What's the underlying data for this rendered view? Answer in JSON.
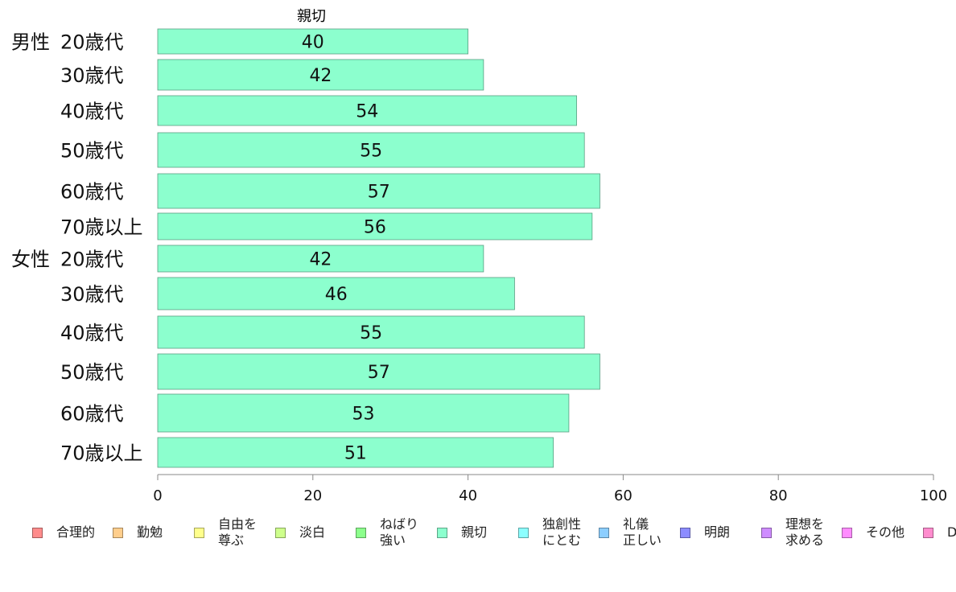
{
  "chart_data": {
    "type": "bar",
    "orientation": "horizontal",
    "series_title": "親切",
    "rows": [
      {
        "group": "男性",
        "label": "20歳代",
        "value": 40
      },
      {
        "group": "",
        "label": "30歳代",
        "value": 42
      },
      {
        "group": "",
        "label": "40歳代",
        "value": 54
      },
      {
        "group": "",
        "label": "50歳代",
        "value": 55
      },
      {
        "group": "",
        "label": "60歳代",
        "value": 57
      },
      {
        "group": "",
        "label": "70歳以上",
        "value": 56
      },
      {
        "group": "女性",
        "label": "20歳代",
        "value": 42
      },
      {
        "group": "",
        "label": "30歳代",
        "value": 46
      },
      {
        "group": "",
        "label": "40歳代",
        "value": 55
      },
      {
        "group": "",
        "label": "50歳代",
        "value": 57
      },
      {
        "group": "",
        "label": "60歳代",
        "value": 53
      },
      {
        "group": "",
        "label": "70歳以上",
        "value": 51
      }
    ],
    "xlim": [
      0,
      100
    ],
    "xticks": [
      "0",
      "20",
      "40",
      "60",
      "80",
      "100"
    ],
    "bar_color": "#8cffce",
    "grid": false,
    "legend_position": "bottom",
    "legend": [
      {
        "label": "合理的",
        "color": "#ff8c8c"
      },
      {
        "label": "勤勉",
        "color": "#ffce8c"
      },
      {
        "label": "自由を\n尊ぶ",
        "color": "#ffff8c"
      },
      {
        "label": "淡白",
        "color": "#ceff8c"
      },
      {
        "label": "ねばり\n強い",
        "color": "#8cff8c"
      },
      {
        "label": "親切",
        "color": "#8cffce"
      },
      {
        "label": "独創性\nにとむ",
        "color": "#8cffff"
      },
      {
        "label": "礼儀\n正しい",
        "color": "#8cceff"
      },
      {
        "label": "明朗",
        "color": "#8c8cff"
      },
      {
        "label": "理想を\n求める",
        "color": "#ce8cff"
      },
      {
        "label": "その他",
        "color": "#ff8cff"
      },
      {
        "label": "D",
        "color": "#ff8cce"
      }
    ]
  }
}
